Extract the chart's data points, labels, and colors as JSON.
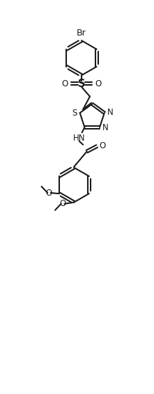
{
  "bg_color": "#ffffff",
  "line_color": "#1a1a1a",
  "line_width": 1.5,
  "font_size": 8.5,
  "fig_width": 2.21,
  "fig_height": 5.66,
  "dpi": 100,
  "xlim": [
    0,
    10
  ],
  "ylim": [
    0,
    26
  ]
}
